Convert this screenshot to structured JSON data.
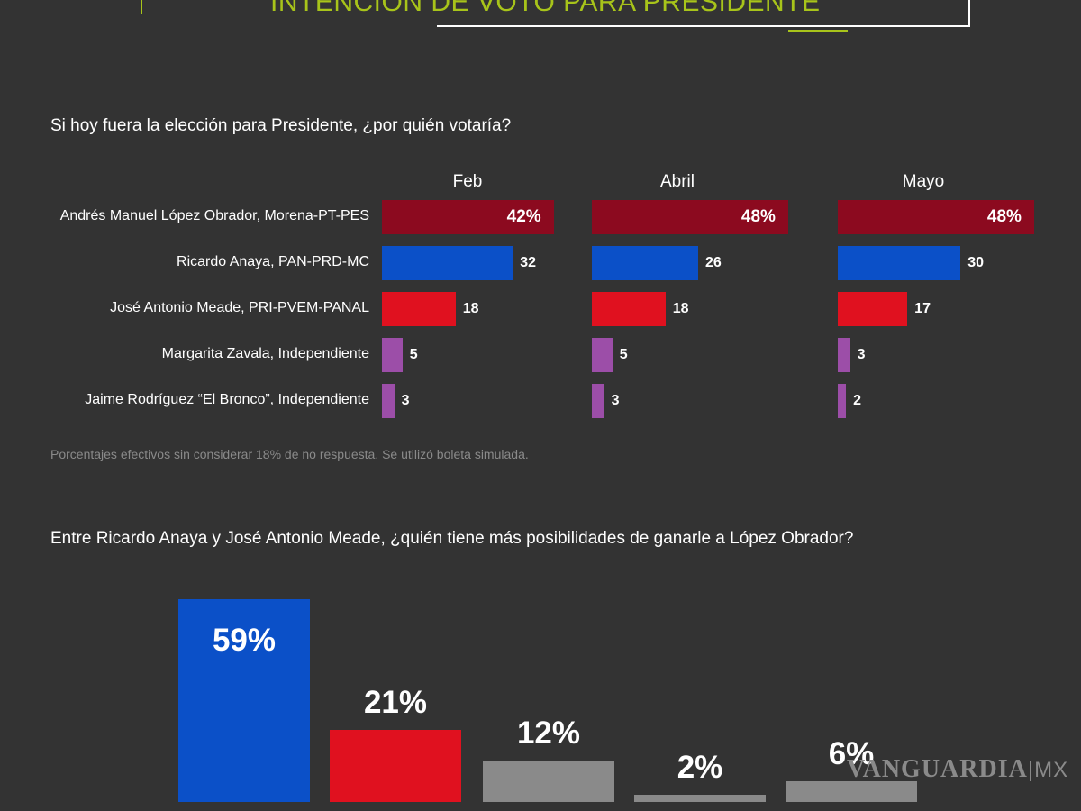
{
  "header": {
    "title": "INTENCIÓN DE VOTO PARA PRESIDENTE"
  },
  "chart_data": [
    {
      "type": "bar",
      "title": "Si hoy fuera la elección para Presidente, ¿por quién votaría?",
      "categories": [
        "Andrés Manuel López Obrador, Morena-PT-PES",
        "Ricardo Anaya, PAN-PRD-MC",
        "José Antonio Meade, PRI-PVEM-PANAL",
        "Margarita Zavala, Independiente",
        "Jaime Rodríguez “El Bronco”, Independiente"
      ],
      "colors": [
        "#8c0a1f",
        "#0b50c8",
        "#e0111f",
        "#9c4ea8",
        "#9c4ea8"
      ],
      "series": [
        {
          "name": "Feb",
          "values": [
            42,
            32,
            18,
            5,
            3
          ]
        },
        {
          "name": "Abril",
          "values": [
            48,
            26,
            18,
            5,
            3
          ]
        },
        {
          "name": "Mayo",
          "values": [
            48,
            30,
            17,
            3,
            2
          ]
        }
      ],
      "value_format_first": "%",
      "note": "Porcentajes efectivos sin considerar 18% de no respuesta. Se utilizó boleta simulada."
    },
    {
      "type": "bar",
      "title": "Entre Ricardo Anaya y José Antonio Meade, ¿quién tiene más posibilidades de ganarle a López Obrador?",
      "values": [
        59,
        21,
        12,
        2,
        6
      ],
      "labels": [
        "59%",
        "21%",
        "12%",
        "2%",
        "6%"
      ],
      "colors": [
        "#0b50c8",
        "#e0111f",
        "#8a8a8a",
        "#8a8a8a",
        "#8a8a8a"
      ]
    }
  ],
  "watermark": {
    "brand": "VANGUARDIA",
    "suffix": "MX"
  }
}
